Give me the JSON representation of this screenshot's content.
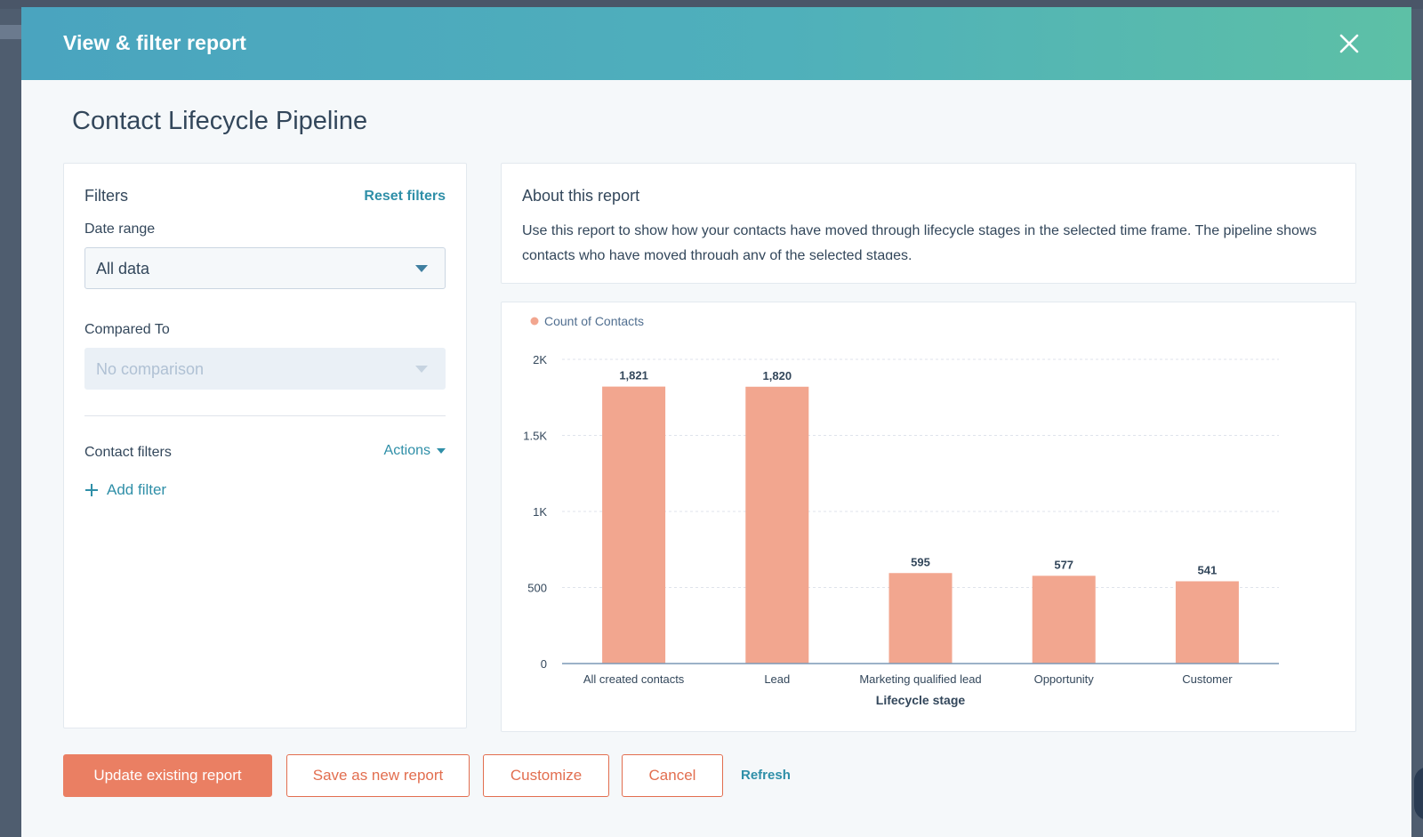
{
  "modal": {
    "title": "View & filter report",
    "report_title": "Contact Lifecycle Pipeline"
  },
  "filters": {
    "heading": "Filters",
    "reset_label": "Reset filters",
    "date_range_label": "Date range",
    "date_range_value": "All data",
    "compared_to_label": "Compared To",
    "compared_to_value": "No comparison",
    "contact_filters_label": "Contact filters",
    "actions_label": "Actions",
    "add_filter_label": "Add filter"
  },
  "about": {
    "heading": "About this report",
    "text": "Use this report to show how your contacts have moved through lifecycle stages in the selected time frame. The pipeline shows contacts who have moved through any of the selected stages."
  },
  "chart_data": {
    "type": "bar",
    "title": "",
    "xlabel": "Lifecycle stage",
    "ylabel": "",
    "categories": [
      "All created contacts",
      "Lead",
      "Marketing qualified lead",
      "Opportunity",
      "Customer"
    ],
    "series": [
      {
        "name": "Count of Contacts",
        "values": [
          1821,
          1820,
          595,
          577,
          541
        ],
        "labels": [
          "1,821",
          "1,820",
          "595",
          "577",
          "541"
        ],
        "color": "#f2a68f"
      }
    ],
    "ylim": [
      0,
      2000
    ],
    "yticks": [
      0,
      500,
      1000,
      1500,
      2000
    ],
    "ytick_labels": [
      "0",
      "500",
      "1K",
      "1.5K",
      "2K"
    ],
    "grid": true,
    "legend": "top-left"
  },
  "footer": {
    "update_label": "Update existing report",
    "save_new_label": "Save as new report",
    "customize_label": "Customize",
    "cancel_label": "Cancel",
    "refresh_label": "Refresh"
  },
  "colors": {
    "accent": "#2f8fa8",
    "primary_button": "#ea7f63",
    "secondary_text": "#e26e4f",
    "bar": "#f2a68f"
  }
}
